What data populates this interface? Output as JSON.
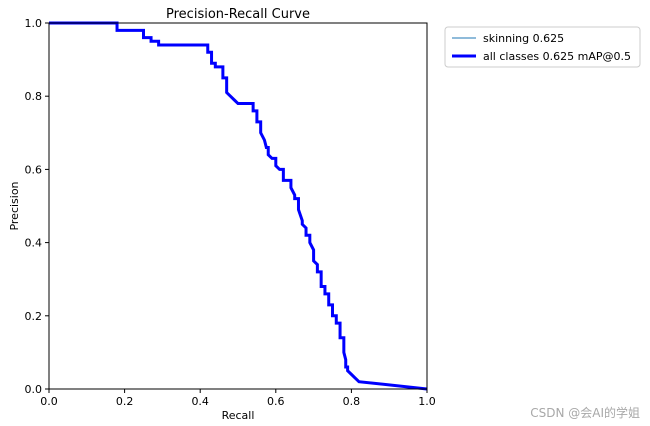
{
  "chart_data": {
    "type": "line",
    "title": "Precision-Recall Curve",
    "xlabel": "Recall",
    "ylabel": "Precision",
    "xlim": [
      0,
      1
    ],
    "ylim": [
      0,
      1
    ],
    "xticks": [
      "0.0",
      "0.2",
      "0.4",
      "0.6",
      "0.8",
      "1.0"
    ],
    "yticks": [
      "0.0",
      "0.2",
      "0.4",
      "0.6",
      "0.8",
      "1.0"
    ],
    "grid": false,
    "legend_position": "outside-top-right",
    "series": [
      {
        "name": "skinning 0.625",
        "color": "#1f77b4",
        "x": [
          0.0,
          0.18,
          0.18,
          0.25,
          0.25,
          0.27,
          0.27,
          0.29,
          0.29,
          0.42,
          0.42,
          0.43,
          0.43,
          0.44,
          0.44,
          0.46,
          0.46,
          0.47,
          0.47,
          0.48,
          0.49,
          0.5,
          0.52,
          0.54,
          0.54,
          0.55,
          0.55,
          0.56,
          0.56,
          0.57,
          0.575,
          0.58,
          0.58,
          0.59,
          0.6,
          0.6,
          0.61,
          0.62,
          0.62,
          0.64,
          0.64,
          0.65,
          0.65,
          0.66,
          0.66,
          0.67,
          0.67,
          0.68,
          0.68,
          0.69,
          0.69,
          0.7,
          0.7,
          0.71,
          0.71,
          0.72,
          0.72,
          0.73,
          0.73,
          0.74,
          0.74,
          0.75,
          0.75,
          0.76,
          0.76,
          0.77,
          0.77,
          0.78,
          0.78,
          0.785,
          0.785,
          0.79,
          0.79,
          0.8,
          0.81,
          0.82,
          1.0
        ],
        "y": [
          1.0,
          1.0,
          0.98,
          0.98,
          0.96,
          0.96,
          0.95,
          0.95,
          0.94,
          0.94,
          0.92,
          0.92,
          0.89,
          0.89,
          0.88,
          0.88,
          0.85,
          0.85,
          0.81,
          0.8,
          0.79,
          0.78,
          0.78,
          0.78,
          0.76,
          0.76,
          0.73,
          0.73,
          0.7,
          0.68,
          0.66,
          0.66,
          0.64,
          0.63,
          0.63,
          0.61,
          0.6,
          0.6,
          0.57,
          0.57,
          0.55,
          0.53,
          0.52,
          0.52,
          0.49,
          0.46,
          0.45,
          0.44,
          0.42,
          0.42,
          0.4,
          0.38,
          0.35,
          0.34,
          0.32,
          0.32,
          0.28,
          0.28,
          0.26,
          0.26,
          0.23,
          0.23,
          0.2,
          0.2,
          0.18,
          0.18,
          0.14,
          0.14,
          0.1,
          0.08,
          0.06,
          0.06,
          0.05,
          0.04,
          0.03,
          0.02,
          0.0
        ]
      },
      {
        "name": "all classes 0.625 mAP@0.5",
        "color": "#0000ff",
        "x": [
          0.0,
          0.18,
          0.18,
          0.25,
          0.25,
          0.27,
          0.27,
          0.29,
          0.29,
          0.42,
          0.42,
          0.43,
          0.43,
          0.44,
          0.44,
          0.46,
          0.46,
          0.47,
          0.47,
          0.48,
          0.49,
          0.5,
          0.52,
          0.54,
          0.54,
          0.55,
          0.55,
          0.56,
          0.56,
          0.57,
          0.575,
          0.58,
          0.58,
          0.59,
          0.6,
          0.6,
          0.61,
          0.62,
          0.62,
          0.64,
          0.64,
          0.65,
          0.65,
          0.66,
          0.66,
          0.67,
          0.67,
          0.68,
          0.68,
          0.69,
          0.69,
          0.7,
          0.7,
          0.71,
          0.71,
          0.72,
          0.72,
          0.73,
          0.73,
          0.74,
          0.74,
          0.75,
          0.75,
          0.76,
          0.76,
          0.77,
          0.77,
          0.78,
          0.78,
          0.785,
          0.785,
          0.79,
          0.79,
          0.8,
          0.81,
          0.82,
          1.0
        ],
        "y": [
          1.0,
          1.0,
          0.98,
          0.98,
          0.96,
          0.96,
          0.95,
          0.95,
          0.94,
          0.94,
          0.92,
          0.92,
          0.89,
          0.89,
          0.88,
          0.88,
          0.85,
          0.85,
          0.81,
          0.8,
          0.79,
          0.78,
          0.78,
          0.78,
          0.76,
          0.76,
          0.73,
          0.73,
          0.7,
          0.68,
          0.66,
          0.66,
          0.64,
          0.63,
          0.63,
          0.61,
          0.6,
          0.6,
          0.57,
          0.57,
          0.55,
          0.53,
          0.52,
          0.52,
          0.49,
          0.46,
          0.45,
          0.44,
          0.42,
          0.42,
          0.4,
          0.38,
          0.35,
          0.34,
          0.32,
          0.32,
          0.28,
          0.28,
          0.26,
          0.26,
          0.23,
          0.23,
          0.2,
          0.2,
          0.18,
          0.18,
          0.14,
          0.14,
          0.1,
          0.08,
          0.06,
          0.06,
          0.05,
          0.04,
          0.03,
          0.02,
          0.0
        ]
      }
    ]
  },
  "watermark": "CSDN @会AI的学姐"
}
